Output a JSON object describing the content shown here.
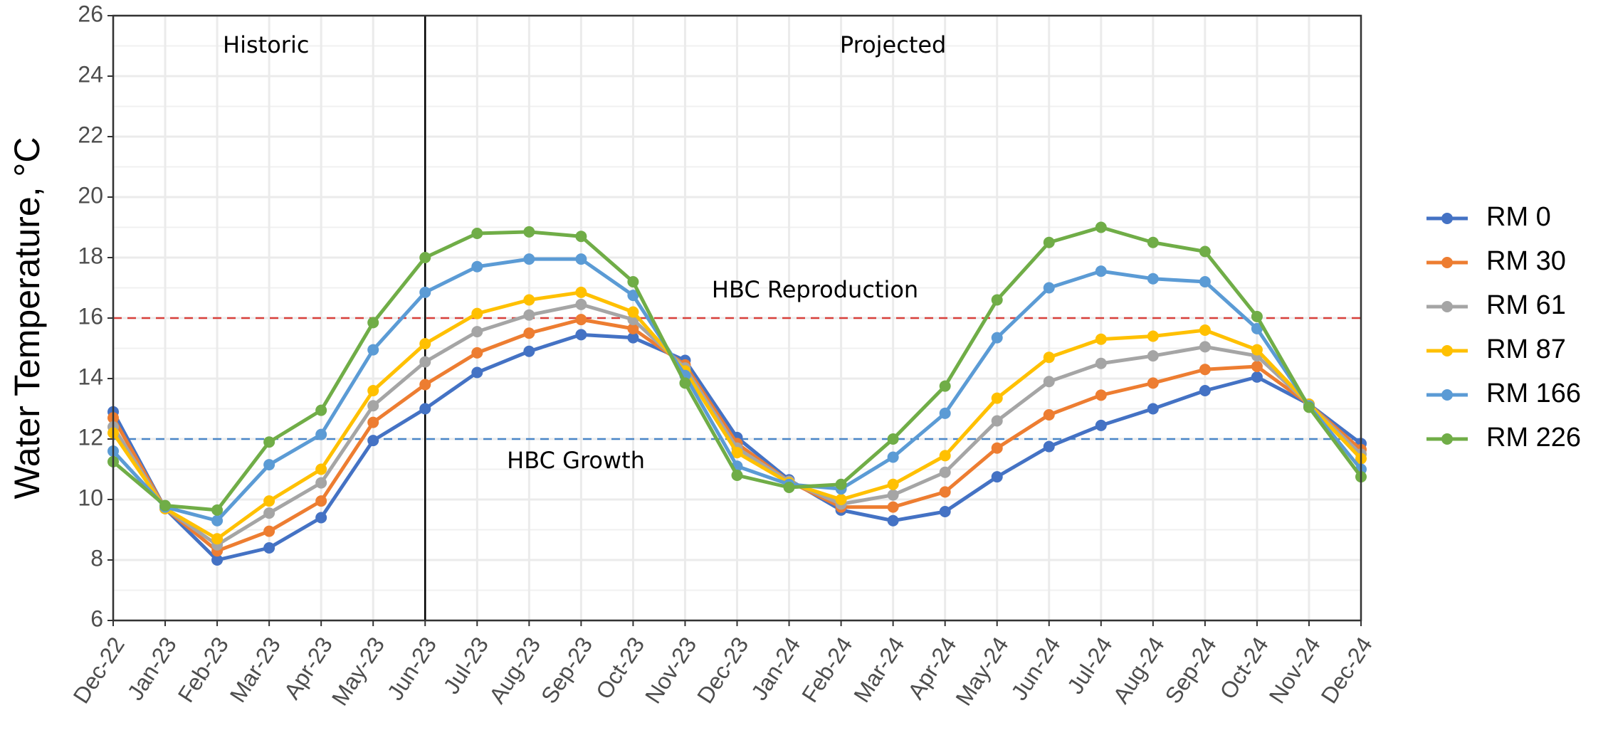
{
  "chart_data": {
    "type": "line",
    "y_axis_label": "Water Temperature, °C",
    "categories": [
      "Dec-22",
      "Jan-23",
      "Feb-23",
      "Mar-23",
      "Apr-23",
      "May-23",
      "Jun-23",
      "Jul-23",
      "Aug-23",
      "Sep-23",
      "Oct-23",
      "Nov-23",
      "Dec-23",
      "Jan-24",
      "Feb-24",
      "Mar-24",
      "Apr-24",
      "May-24",
      "Jun-24",
      "Jul-24",
      "Aug-24",
      "Sep-24",
      "Oct-24",
      "Nov-24",
      "Dec-24"
    ],
    "series": [
      {
        "name": "RM 0",
        "color": "#4472c4",
        "values": [
          12.9,
          9.7,
          8.0,
          8.4,
          9.4,
          11.95,
          13.0,
          14.2,
          14.9,
          15.45,
          15.35,
          14.6,
          12.05,
          10.65,
          9.65,
          9.3,
          9.6,
          10.75,
          11.75,
          12.45,
          13.0,
          13.6,
          14.05,
          13.15,
          11.85
        ]
      },
      {
        "name": "RM 30",
        "color": "#ed7d31",
        "values": [
          12.7,
          9.7,
          8.3,
          8.95,
          9.95,
          12.55,
          13.8,
          14.85,
          15.5,
          15.95,
          15.65,
          14.45,
          11.85,
          10.6,
          9.75,
          9.75,
          10.25,
          11.7,
          12.8,
          13.45,
          13.85,
          14.3,
          14.4,
          13.15,
          11.65
        ]
      },
      {
        "name": "RM 61",
        "color": "#a5a5a5",
        "values": [
          12.4,
          9.7,
          8.5,
          9.55,
          10.55,
          13.1,
          14.55,
          15.55,
          16.1,
          16.45,
          15.95,
          14.35,
          11.7,
          10.6,
          9.85,
          10.15,
          10.9,
          12.6,
          13.9,
          14.5,
          14.75,
          15.05,
          14.75,
          13.15,
          11.5
        ]
      },
      {
        "name": "RM 87",
        "color": "#ffc000",
        "values": [
          12.2,
          9.7,
          8.7,
          9.95,
          11.0,
          13.6,
          15.15,
          16.15,
          16.6,
          16.85,
          16.2,
          14.25,
          11.55,
          10.55,
          10.0,
          10.5,
          11.45,
          13.35,
          14.7,
          15.3,
          15.4,
          15.6,
          14.95,
          13.15,
          11.35
        ]
      },
      {
        "name": "RM 166",
        "color": "#5b9bd5",
        "values": [
          11.6,
          9.75,
          9.3,
          11.15,
          12.15,
          14.95,
          16.85,
          17.7,
          17.95,
          17.95,
          16.75,
          14.1,
          11.1,
          10.5,
          10.35,
          11.4,
          12.85,
          15.35,
          17.0,
          17.55,
          17.3,
          17.2,
          15.65,
          13.1,
          11.0
        ]
      },
      {
        "name": "RM 226",
        "color": "#70ad47",
        "values": [
          11.25,
          9.8,
          9.65,
          11.9,
          12.95,
          15.85,
          18.0,
          18.8,
          18.85,
          18.7,
          17.2,
          13.85,
          10.8,
          10.4,
          10.5,
          12.0,
          13.75,
          16.6,
          18.5,
          19.0,
          18.5,
          18.2,
          16.05,
          13.05,
          10.75
        ]
      }
    ],
    "ylim": [
      6,
      26
    ],
    "yticks": [
      6,
      8,
      10,
      12,
      14,
      16,
      18,
      20,
      22,
      24,
      26
    ],
    "grid": true,
    "reference_lines": [
      {
        "value": 16,
        "label": "HBC Reproduction",
        "color": "#d9403b"
      },
      {
        "value": 12,
        "label": "HBC Growth",
        "color": "#4a86c8"
      }
    ],
    "divider": "Jun-23",
    "regions": [
      "Historic",
      "Projected"
    ],
    "legend": "right"
  }
}
